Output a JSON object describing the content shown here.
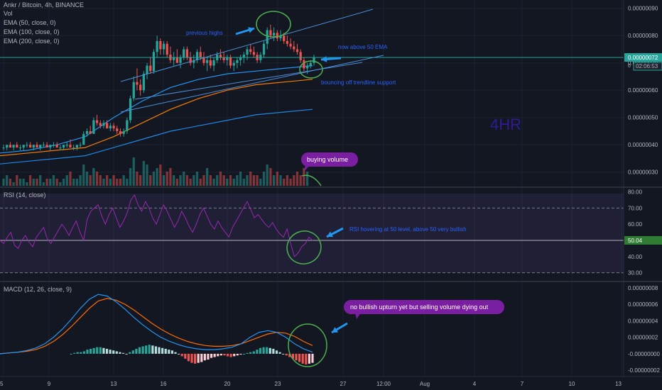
{
  "header": {
    "symbol_line": "Ankr / Bitcoin, 4h, BINANCE",
    "legends": [
      "Vol",
      "EMA (50, close, 0)",
      "EMA (100, close, 0)",
      "EMA (200, close, 0)"
    ],
    "rsi_legend": "RSI (14, close)",
    "macd_legend": "MACD (12, 26, close, 9)",
    "timeframe_label": "4HR"
  },
  "price_scale": {
    "ticks": [
      "0.00000090",
      "0.00000080",
      "0.00000070",
      "0.00000060",
      "0.00000050",
      "0.00000040",
      "0.00000030"
    ],
    "last_price": "0.00000072",
    "countdown": "02:06:53",
    "marker": "0"
  },
  "rsi_scale": {
    "ticks": [
      "80.00",
      "70.00",
      "60.00",
      "40.00",
      "30.00"
    ],
    "value": "50.04"
  },
  "macd_scale": {
    "ticks": [
      "0.00000008",
      "0.00000006",
      "0.00000004",
      "0.00000002",
      "-0.00000000",
      "-0.00000002"
    ]
  },
  "time_axis": {
    "labels": [
      "5",
      "9",
      "13",
      "16",
      "20",
      "23",
      "27",
      "12:00",
      "Aug",
      "4",
      "7",
      "10",
      "13"
    ]
  },
  "annotations": {
    "previous_highs": "previous highs",
    "above_ema": "now above 50 EMA",
    "trendline_support": "bouncing off trendline support",
    "buying_volume": "buying volume",
    "rsi_note": "RSI hovering at 50 level, above 50 very bullish",
    "macd_note": "no bullish upturn yet but selling volume dying out"
  },
  "colors": {
    "background": "#131722",
    "up": "#26a69a",
    "down": "#ef5350",
    "ema50": "#2196f3",
    "ema100": "#f57c00",
    "ema200": "#1e88e5",
    "rsi_line": "#9c27b0",
    "macd_line": "#2196f3",
    "signal_line": "#ff6d00",
    "annotation_text": "#2962ff",
    "arrow": "#2196f3",
    "circle": "#4caf50",
    "bubble": "#7b1fa2",
    "timeframe_label": "#311b92"
  },
  "chart_data": [
    {
      "type": "candlestick",
      "title": "Ankr / Bitcoin, 4h, BINANCE",
      "x_labels": [
        "5",
        "9",
        "13",
        "16",
        "20",
        "23",
        "27"
      ],
      "ylim": [
        2.5e-07,
        9.2e-07
      ],
      "candles": [
        [
          3.9e-07,
          4e-07,
          3.8e-07,
          3.9e-07
        ],
        [
          3.9e-07,
          4e-07,
          3.8e-07,
          4e-07
        ],
        [
          4e-07,
          4.1e-07,
          3.9e-07,
          3.9e-07
        ],
        [
          3.9e-07,
          4e-07,
          3.8e-07,
          4e-07
        ],
        [
          4e-07,
          4.1e-07,
          3.9e-07,
          3.9e-07
        ],
        [
          3.9e-07,
          4e-07,
          3.8e-07,
          3.9e-07
        ],
        [
          3.9e-07,
          4e-07,
          3.8e-07,
          4e-07
        ],
        [
          4e-07,
          4.1e-07,
          3.9e-07,
          4e-07
        ],
        [
          4e-07,
          4.1e-07,
          3.9e-07,
          3.9e-07
        ],
        [
          3.9e-07,
          4e-07,
          3.8e-07,
          4e-07
        ],
        [
          4e-07,
          4.1e-07,
          3.9e-07,
          3.9e-07
        ],
        [
          3.9e-07,
          4e-07,
          3.8e-07,
          4e-07
        ],
        [
          4e-07,
          4.1e-07,
          3.9e-07,
          4e-07
        ],
        [
          4e-07,
          4.1e-07,
          3.9e-07,
          3.9e-07
        ],
        [
          3.9e-07,
          4e-07,
          3.8e-07,
          4e-07
        ],
        [
          4e-07,
          4.1e-07,
          3.9e-07,
          4e-07
        ],
        [
          4e-07,
          4.1e-07,
          3.9e-07,
          3.9e-07
        ],
        [
          3.9e-07,
          4e-07,
          3.8e-07,
          3.9e-07
        ],
        [
          3.9e-07,
          4e-07,
          3.8e-07,
          4e-07
        ],
        [
          4e-07,
          4.1e-07,
          3.9e-07,
          4e-07
        ],
        [
          4e-07,
          4.2e-07,
          3.9e-07,
          3.9e-07
        ],
        [
          3.9e-07,
          4e-07,
          3.8e-07,
          3.9e-07
        ],
        [
          3.9e-07,
          4e-07,
          3.8e-07,
          4e-07
        ],
        [
          4e-07,
          4.1e-07,
          3.9e-07,
          4e-07
        ],
        [
          4e-07,
          4.5e-07,
          4e-07,
          4.4e-07
        ],
        [
          4.4e-07,
          4.6e-07,
          4.3e-07,
          4.5e-07
        ],
        [
          4.5e-07,
          4.7e-07,
          4.4e-07,
          4.4e-07
        ],
        [
          4.4e-07,
          5e-07,
          4.4e-07,
          4.9e-07
        ],
        [
          4.9e-07,
          5.1e-07,
          4.7e-07,
          4.8e-07
        ],
        [
          4.8e-07,
          4.9e-07,
          4.6e-07,
          4.7e-07
        ],
        [
          4.7e-07,
          4.9e-07,
          4.6e-07,
          4.8e-07
        ],
        [
          4.8e-07,
          4.9e-07,
          4.6e-07,
          4.6e-07
        ],
        [
          4.6e-07,
          4.8e-07,
          4.5e-07,
          4.7e-07
        ],
        [
          4.7e-07,
          4.8e-07,
          4.5e-07,
          4.6e-07
        ],
        [
          4.6e-07,
          4.7e-07,
          4.4e-07,
          4.5e-07
        ],
        [
          4.5e-07,
          4.6e-07,
          4.3e-07,
          4.4e-07
        ],
        [
          4.4e-07,
          4.6e-07,
          4.3e-07,
          4.5e-07
        ],
        [
          4.5e-07,
          5e-07,
          4.4e-07,
          4.9e-07
        ],
        [
          4.9e-07,
          5.8e-07,
          4.8e-07,
          5.7e-07
        ],
        [
          5.7e-07,
          6.5e-07,
          5.6e-07,
          6.3e-07
        ],
        [
          6.3e-07,
          6.8e-07,
          6e-07,
          6.2e-07
        ],
        [
          6.2e-07,
          6.4e-07,
          5.8e-07,
          6e-07
        ],
        [
          6e-07,
          6.7e-07,
          5.9e-07,
          6.6e-07
        ],
        [
          6.6e-07,
          7e-07,
          6.4e-07,
          6.9e-07
        ],
        [
          6.9e-07,
          7.2e-07,
          6.6e-07,
          6.7e-07
        ],
        [
          6.7e-07,
          7.5e-07,
          6.6e-07,
          7.4e-07
        ],
        [
          7.4e-07,
          8e-07,
          7.2e-07,
          7.8e-07
        ],
        [
          7.8e-07,
          7.9e-07,
          7.3e-07,
          7.5e-07
        ],
        [
          7.5e-07,
          7.8e-07,
          7.3e-07,
          7.7e-07
        ],
        [
          7.7e-07,
          7.8e-07,
          7.2e-07,
          7.3e-07
        ],
        [
          7.3e-07,
          7.6e-07,
          7e-07,
          7.1e-07
        ],
        [
          7.1e-07,
          7.4e-07,
          6.9e-07,
          7.2e-07
        ],
        [
          7.2e-07,
          7.5e-07,
          7e-07,
          7e-07
        ],
        [
          7e-07,
          7.3e-07,
          6.8e-07,
          7.2e-07
        ],
        [
          7.2e-07,
          7.6e-07,
          7.1e-07,
          7.5e-07
        ],
        [
          7.5e-07,
          7.6e-07,
          7.1e-07,
          7.2e-07
        ],
        [
          7.2e-07,
          7.4e-07,
          6.9e-07,
          7e-07
        ],
        [
          7e-07,
          7.3e-07,
          6.8e-07,
          7.1e-07
        ],
        [
          7.1e-07,
          7.5e-07,
          7e-07,
          7.4e-07
        ],
        [
          7.4e-07,
          7.6e-07,
          7.1e-07,
          7.2e-07
        ],
        [
          7.2e-07,
          7.4e-07,
          6.9e-07,
          7e-07
        ],
        [
          7e-07,
          7.2e-07,
          6.7e-07,
          7.1e-07
        ],
        [
          7.1e-07,
          7.3e-07,
          6.8e-07,
          6.9e-07
        ],
        [
          6.9e-07,
          7.2e-07,
          6.7e-07,
          7.1e-07
        ],
        [
          7.1e-07,
          7.4e-07,
          7e-07,
          7.3e-07
        ],
        [
          7.3e-07,
          7.5e-07,
          7.1e-07,
          7.2e-07
        ],
        [
          7.2e-07,
          7.4e-07,
          7e-07,
          7.1e-07
        ],
        [
          7.1e-07,
          7.3e-07,
          6.9e-07,
          7.2e-07
        ],
        [
          7.2e-07,
          7.3e-07,
          6.8e-07,
          6.9e-07
        ],
        [
          6.9e-07,
          7.1e-07,
          6.7e-07,
          7e-07
        ],
        [
          7e-07,
          7.2e-07,
          6.8e-07,
          7.1e-07
        ],
        [
          7.1e-07,
          7.3e-07,
          6.9e-07,
          7.2e-07
        ],
        [
          7.2e-07,
          7.4e-07,
          7e-07,
          7.3e-07
        ],
        [
          7.3e-07,
          7.6e-07,
          7.1e-07,
          7.5e-07
        ],
        [
          7.5e-07,
          7.7e-07,
          7.3e-07,
          7.4e-07
        ],
        [
          7.4e-07,
          7.6e-07,
          7.2e-07,
          7.3e-07
        ],
        [
          7.3e-07,
          7.4e-07,
          7e-07,
          7.1e-07
        ],
        [
          7.1e-07,
          7.4e-07,
          7e-07,
          7.3e-07
        ],
        [
          7.3e-07,
          7.8e-07,
          7.2e-07,
          7.7e-07
        ],
        [
          7.7e-07,
          8.3e-07,
          7.5e-07,
          8.2e-07
        ],
        [
          8.2e-07,
          8.4e-07,
          7.9e-07,
          8e-07
        ],
        [
          8e-07,
          8.3e-07,
          7.8e-07,
          8.1e-07
        ],
        [
          8.1e-07,
          8.2e-07,
          7.8e-07,
          7.9e-07
        ],
        [
          7.9e-07,
          8.2e-07,
          7.8e-07,
          8e-07
        ],
        [
          8e-07,
          8.1e-07,
          7.7e-07,
          7.8e-07
        ],
        [
          7.8e-07,
          8e-07,
          7.6e-07,
          7.7e-07
        ],
        [
          7.7e-07,
          7.9e-07,
          7.5e-07,
          7.6e-07
        ],
        [
          7.6e-07,
          7.8e-07,
          7.4e-07,
          7.5e-07
        ],
        [
          7.5e-07,
          7.7e-07,
          7.3e-07,
          7.4e-07
        ],
        [
          7.4e-07,
          7.5e-07,
          7e-07,
          7.1e-07
        ],
        [
          7.1e-07,
          7.2e-07,
          6.7e-07,
          6.8e-07
        ],
        [
          6.8e-07,
          7e-07,
          6.6e-07,
          6.9e-07
        ],
        [
          6.9e-07,
          7.1e-07,
          6.8e-07,
          7e-07
        ],
        [
          7e-07,
          7.3e-07,
          6.9e-07,
          7.2e-07
        ]
      ],
      "ema50": [
        3.7e-07,
        3.8e-07,
        4e-07,
        4.3e-07,
        5e-07,
        5.6e-07,
        6.1e-07,
        6.4e-07,
        6.6e-07,
        6.7e-07,
        6.8e-07,
        6.9e-07
      ],
      "ema100": [
        3.6e-07,
        3.7e-07,
        3.8e-07,
        3.9e-07,
        4.3e-07,
        4.8e-07,
        5.3e-07,
        5.7e-07,
        6e-07,
        6.2e-07,
        6.3e-07,
        6.4e-07
      ],
      "ema200": [
        3.3e-07,
        3.4e-07,
        3.5e-07,
        3.6e-07,
        3.9e-07,
        4.2e-07,
        4.5e-07,
        4.7e-07,
        4.9e-07,
        5.1e-07,
        5.2e-07,
        5.3e-07
      ],
      "last_price": 7.2e-07
    },
    {
      "type": "line",
      "title": "RSI (14, close)",
      "ylim": [
        25,
        82
      ],
      "levels": [
        70,
        50,
        30
      ],
      "values": [
        50,
        48,
        52,
        55,
        47,
        45,
        50,
        53,
        49,
        46,
        52,
        55,
        58,
        51,
        48,
        52,
        56,
        60,
        57,
        53,
        58,
        62,
        55,
        50,
        63,
        68,
        70,
        72,
        65,
        60,
        66,
        70,
        64,
        58,
        62,
        67,
        75,
        78,
        72,
        68,
        74,
        70,
        64,
        60,
        66,
        72,
        68,
        63,
        58,
        62,
        68,
        64,
        59,
        55,
        60,
        66,
        70,
        65,
        60,
        57,
        62,
        58,
        55,
        52,
        58,
        62,
        66,
        70,
        74,
        69,
        64,
        66,
        63,
        60,
        58,
        61,
        57,
        54,
        52,
        57,
        48,
        40,
        42,
        46,
        48,
        52,
        50
      ]
    },
    {
      "type": "bar+line",
      "title": "MACD (12, 26, close, 9)",
      "ylim": [
        -2.5e-08,
        8.5e-08
      ],
      "histogram": [
        0,
        1e-09,
        2e-09,
        2e-09,
        3e-09,
        5e-09,
        6e-09,
        7e-09,
        8e-09,
        8e-09,
        7e-09,
        6e-09,
        5e-09,
        4e-09,
        3e-09,
        2e-09,
        1e-09,
        0,
        2e-09,
        4e-09,
        6e-09,
        8e-09,
        9e-09,
        1e-08,
        1.1e-08,
        1e-08,
        9e-09,
        8e-09,
        7e-09,
        6e-09,
        5e-09,
        4e-09,
        2e-09,
        0,
        -3e-09,
        -6e-09,
        -9e-09,
        -1.1e-08,
        -1.2e-08,
        -1.1e-08,
        -1e-08,
        -8e-09,
        -7e-09,
        -5e-09,
        -4e-09,
        -3e-09,
        -2e-09,
        -2e-09,
        -3e-09,
        -4e-09,
        -3e-09,
        -2e-09,
        -1e-09,
        0,
        1e-09,
        2e-09,
        3e-09,
        5e-09,
        7e-09,
        8e-09,
        8e-09,
        7e-09,
        6e-09,
        4e-09,
        2e-09,
        0,
        -2e-09,
        -4e-09,
        -6e-09,
        -8e-09,
        -1e-08,
        -1.2e-08,
        -1.3e-08,
        -1.2e-08,
        -1.1e-08
      ],
      "macd": [
        0,
        1e-09,
        2e-09,
        4e-09,
        7e-09,
        1.2e-08,
        2e-08,
        3e-08,
        4.2e-08,
        5.5e-08,
        6.6e-08,
        7.2e-08,
        7e-08,
        6.3e-08,
        5.4e-08,
        4.4e-08,
        3.5e-08,
        2.7e-08,
        2e-08,
        1.5e-08,
        1.1e-08,
        8e-09,
        6e-09,
        5e-09,
        5e-09,
        6e-09,
        8e-09,
        1.2e-08,
        2e-08,
        2.6e-08,
        2.8e-08,
        2.6e-08,
        2e-08,
        1.2e-08,
        6e-09,
        2e-09
      ],
      "signal": [
        0,
        1e-09,
        2e-09,
        3e-09,
        5e-09,
        9e-09,
        1.5e-08,
        2.3e-08,
        3.3e-08,
        4.4e-08,
        5.5e-08,
        6.4e-08,
        6.7e-08,
        6.5e-08,
        6e-08,
        5.3e-08,
        4.5e-08,
        3.7e-08,
        3e-08,
        2.4e-08,
        1.9e-08,
        1.5e-08,
        1.2e-08,
        1e-08,
        9e-09,
        9e-09,
        1e-08,
        1.2e-08,
        1.6e-08,
        2e-08,
        2.4e-08,
        2.6e-08,
        2.5e-08,
        2.1e-08,
        1.5e-08,
        1e-08
      ]
    }
  ]
}
